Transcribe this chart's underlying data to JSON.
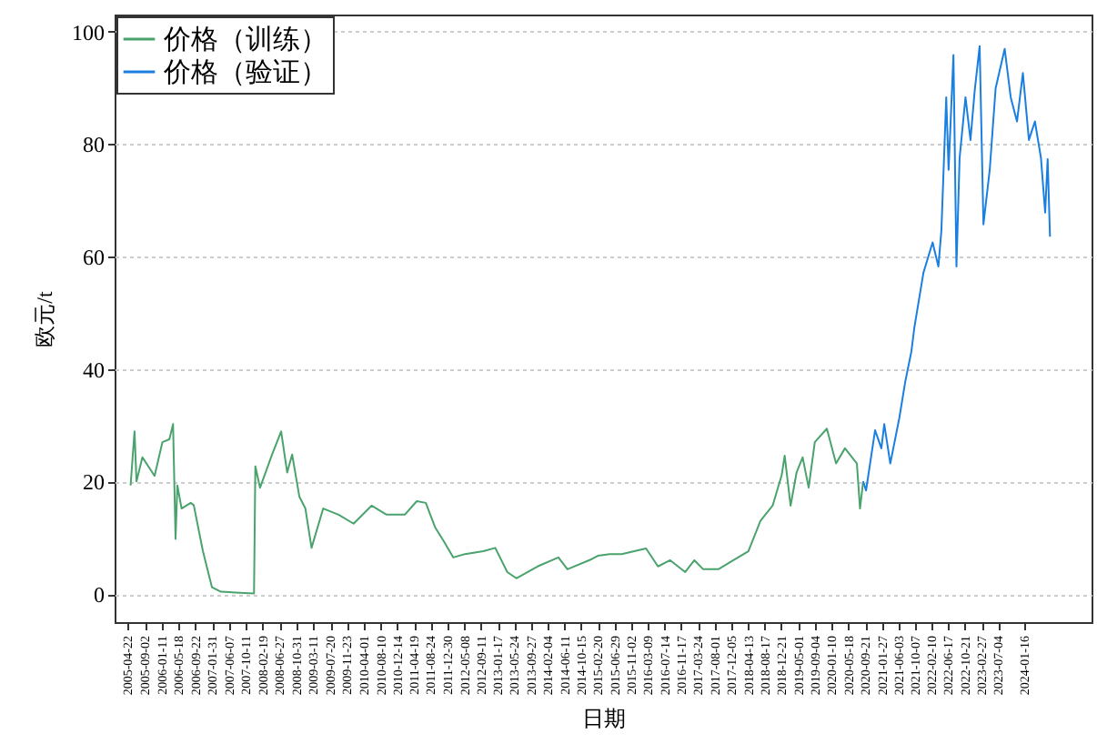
{
  "chart_data": {
    "type": "line",
    "xlabel": "日期",
    "ylabel": "欧元/t",
    "xlim": [
      "2005-01-15",
      "2025-06-15"
    ],
    "ylim": [
      -5,
      103
    ],
    "xticks": [
      "2005-04-22",
      "2005-09-02",
      "2006-01-11",
      "2006-05-18",
      "2006-09-22",
      "2007-01-31",
      "2007-06-07",
      "2007-10-11",
      "2008-02-19",
      "2008-06-27",
      "2008-10-31",
      "2009-03-11",
      "2009-07-20",
      "2009-11-23",
      "2010-04-01",
      "2010-08-10",
      "2010-12-14",
      "2011-04-19",
      "2011-08-24",
      "2011-12-30",
      "2012-05-08",
      "2012-09-11",
      "2013-01-17",
      "2013-05-24",
      "2013-09-27",
      "2014-02-04",
      "2014-06-11",
      "2014-10-15",
      "2015-02-20",
      "2015-06-29",
      "2015-11-02",
      "2016-03-09",
      "2016-07-14",
      "2016-11-17",
      "2017-03-24",
      "2017-08-01",
      "2017-12-05",
      "2018-04-13",
      "2018-08-17",
      "2018-12-21",
      "2019-05-01",
      "2019-09-04",
      "2020-01-10",
      "2020-05-18",
      "2020-09-21",
      "2021-01-27",
      "2021-06-03",
      "2021-10-07",
      "2022-02-10",
      "2022-06-17",
      "2022-10-21",
      "2023-02-27",
      "2023-07-04",
      "2024-01-16"
    ],
    "yticks": [
      0,
      20,
      40,
      60,
      80,
      100
    ],
    "grid": "y",
    "legend": "top left",
    "marker": "none",
    "line_style": "solid",
    "series": [
      {
        "name": "价格（训练）",
        "color": "#4aa36c",
        "x": [
          "2005-05-17",
          "2005-06-16",
          "2005-07-01",
          "2005-08-15",
          "2005-11-16",
          "2006-01-15",
          "2006-03-09",
          "2006-04-06",
          "2006-04-25",
          "2006-05-09",
          "2006-06-10",
          "2006-08-19",
          "2006-09-11",
          "2006-11-20",
          "2007-01-28",
          "2007-04-06",
          "2007-12-15",
          "2007-12-25",
          "2008-01-30",
          "2008-05-01",
          "2008-07-09",
          "2008-08-24",
          "2008-10-01",
          "2008-11-25",
          "2009-01-10",
          "2009-02-26",
          "2009-05-26",
          "2009-09-20",
          "2010-01-13",
          "2010-05-30",
          "2010-09-22",
          "2011-02-08",
          "2011-05-10",
          "2011-07-18",
          "2011-09-26",
          "2011-12-04",
          "2012-02-12",
          "2012-05-13",
          "2012-09-29",
          "2012-12-29",
          "2013-03-31",
          "2013-06-08",
          "2013-11-17",
          "2014-04-25",
          "2014-07-03",
          "2015-01-05",
          "2015-02-20",
          "2015-05-22",
          "2015-08-21",
          "2016-02-23",
          "2016-05-24",
          "2016-08-25",
          "2016-12-18",
          "2017-02-26",
          "2017-05-04",
          "2017-08-28",
          "2017-12-21",
          "2018-04-14",
          "2018-07-15",
          "2018-10-16",
          "2018-12-24",
          "2019-01-16",
          "2019-03-02",
          "2019-04-17",
          "2019-06-02",
          "2019-07-18",
          "2019-09-03",
          "2019-12-04",
          "2020-02-12",
          "2020-04-20",
          "2020-07-20",
          "2020-08-13",
          "2020-09-06"
        ],
        "values": [
          19.3,
          28.9,
          20,
          24.3,
          21,
          27,
          27.5,
          30.2,
          9.8,
          19.3,
          15.2,
          16.2,
          15.8,
          7.6,
          1.2,
          0.4,
          0.1,
          22.7,
          18.9,
          24.8,
          28.9,
          21.6,
          24.8,
          17.3,
          15.2,
          8.2,
          15.2,
          14.1,
          12.5,
          15.7,
          14.1,
          14.1,
          16.5,
          16.2,
          11.9,
          9.3,
          6.5,
          7.1,
          7.6,
          8.2,
          3.9,
          2.8,
          4.9,
          6.5,
          4.4,
          6.2,
          6.8,
          7.1,
          7.1,
          8.1,
          4.9,
          6.0,
          3.9,
          6.0,
          4.4,
          4.4,
          6.0,
          7.6,
          13.0,
          15.7,
          21.1,
          24.6,
          15.7,
          21.6,
          24.3,
          18.9,
          27,
          29.4,
          23.2,
          25.9,
          23.2,
          15.2,
          20
        ]
      },
      {
        "name": "价格（验证）",
        "color": "#1a7fe0",
        "x": [
          "2020-09-06",
          "2020-09-28",
          "2020-12-06",
          "2021-01-23",
          "2021-02-14",
          "2021-04-01",
          "2021-06-09",
          "2021-07-24",
          "2021-09-09",
          "2021-10-02",
          "2021-12-10",
          "2022-02-18",
          "2022-04-03",
          "2022-04-26",
          "2022-06-02",
          "2022-06-20",
          "2022-07-27",
          "2022-08-19",
          "2022-09-12",
          "2022-10-27",
          "2022-12-04",
          "2023-01-05",
          "2023-02-12",
          "2023-03-13",
          "2023-04-30",
          "2023-06-14",
          "2023-08-22",
          "2023-10-07",
          "2023-11-24",
          "2024-01-08",
          "2024-02-23",
          "2024-04-09",
          "2024-05-25",
          "2024-06-26",
          "2024-07-15",
          "2024-08-02"
        ],
        "values": [
          20,
          18.4,
          29.1,
          25.9,
          30.2,
          23.2,
          31.3,
          37.7,
          43.1,
          47.4,
          57.1,
          62.5,
          58.2,
          64.6,
          88.3,
          75.4,
          95.8,
          58.2,
          77.5,
          88.3,
          80.7,
          89.4,
          97.4,
          65.7,
          75.4,
          89.9,
          96.9,
          88.3,
          84,
          92.6,
          80.7,
          84,
          77.5,
          67.8,
          77.3,
          63.5
        ]
      }
    ]
  }
}
